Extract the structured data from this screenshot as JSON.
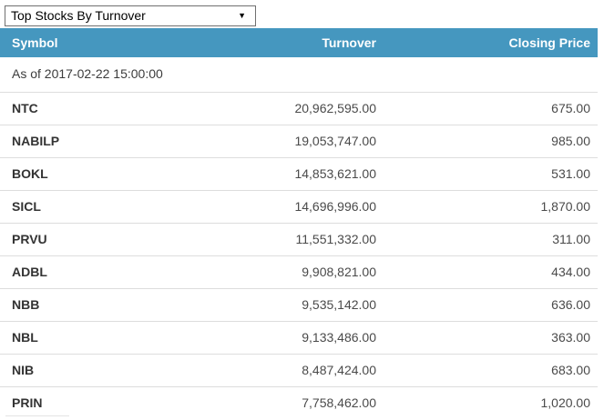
{
  "dropdown": {
    "selected": "Top Stocks By Turnover"
  },
  "table": {
    "columns": [
      "Symbol",
      "Turnover",
      "Closing Price"
    ],
    "as_of": "As of 2017-02-22 15:00:00",
    "rows": [
      {
        "symbol": "NTC",
        "turnover": "20,962,595.00",
        "closing_price": "675.00"
      },
      {
        "symbol": "NABILP",
        "turnover": "19,053,747.00",
        "closing_price": "985.00"
      },
      {
        "symbol": "BOKL",
        "turnover": "14,853,621.00",
        "closing_price": "531.00"
      },
      {
        "symbol": "SICL",
        "turnover": "14,696,996.00",
        "closing_price": "1,870.00"
      },
      {
        "symbol": "PRVU",
        "turnover": "11,551,332.00",
        "closing_price": "311.00"
      },
      {
        "symbol": "ADBL",
        "turnover": "9,908,821.00",
        "closing_price": "434.00"
      },
      {
        "symbol": "NBB",
        "turnover": "9,535,142.00",
        "closing_price": "636.00"
      },
      {
        "symbol": "NBL",
        "turnover": "9,133,486.00",
        "closing_price": "363.00"
      },
      {
        "symbol": "NIB",
        "turnover": "8,487,424.00",
        "closing_price": "683.00"
      },
      {
        "symbol": "PRIN",
        "turnover": "7,758,462.00",
        "closing_price": "1,020.00"
      }
    ]
  },
  "icons": {
    "dropdown_arrow": "▼"
  },
  "colors": {
    "header_bg": "#4597BF",
    "header_text": "#FFFFFF",
    "row_border": "#DDDDDD",
    "symbol_text": "#333333",
    "number_text": "#4A4A4A"
  }
}
